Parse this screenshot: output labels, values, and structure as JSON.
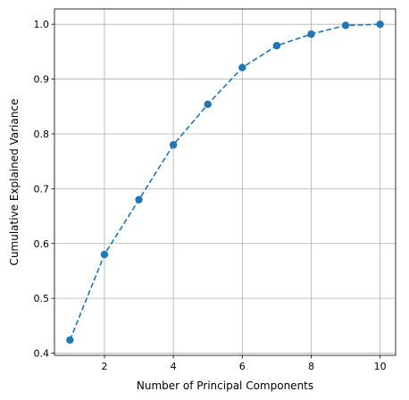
{
  "chart_data": {
    "type": "line",
    "title": "",
    "xlabel": "Number of Principal Components",
    "ylabel": "Cumulative Explained Variance",
    "x": [
      1,
      2,
      3,
      4,
      5,
      6,
      7,
      8,
      9,
      10
    ],
    "series": [
      {
        "values": [
          0.424,
          0.58,
          0.68,
          0.78,
          0.854,
          0.921,
          0.961,
          0.982,
          0.998,
          1.0
        ],
        "color": "#1f77b4",
        "line_style": "dashed",
        "marker": "circle"
      }
    ],
    "xlim": [
      0.55,
      10.45
    ],
    "ylim": [
      0.396,
      1.028
    ],
    "xticks": [
      2,
      4,
      6,
      8,
      10
    ],
    "yticks": [
      0.4,
      0.5,
      0.6,
      0.7,
      0.8,
      0.9,
      1.0
    ],
    "xtick_labels": [
      "2",
      "4",
      "6",
      "8",
      "10"
    ],
    "ytick_labels": [
      "0.4",
      "0.5",
      "0.6",
      "0.7",
      "0.8",
      "0.9",
      "1.0"
    ],
    "grid": true,
    "legend": "none"
  }
}
